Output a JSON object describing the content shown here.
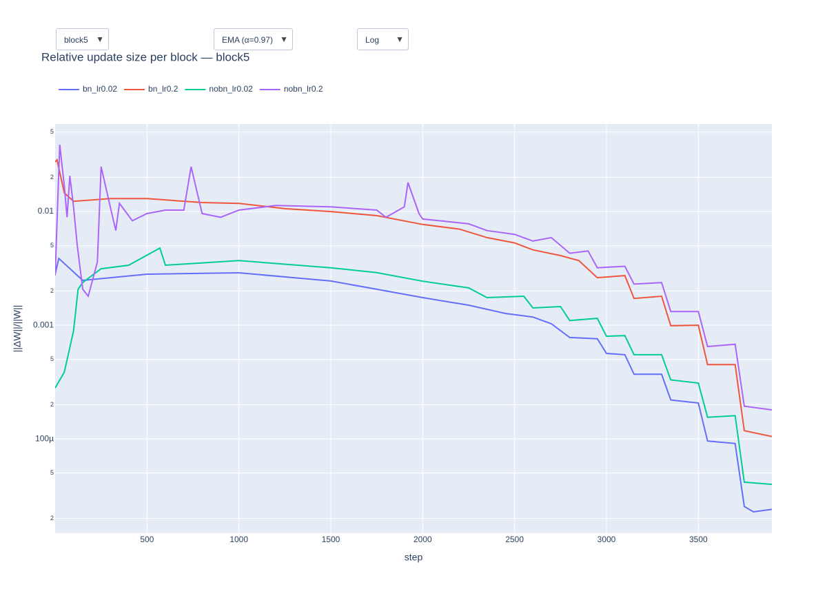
{
  "controls": {
    "block": "block5",
    "smoothing": "EMA (α=0.97)",
    "scale": "Log"
  },
  "chart_data": {
    "type": "line",
    "title": "Relative update size per block — block5",
    "x_label": "step",
    "y_label": "||ΔW||/||W||",
    "log_y": true,
    "grid": true,
    "legend": "top",
    "xlim": [
      0,
      3900
    ],
    "xticks": [
      500,
      1000,
      1500,
      2000,
      2500,
      3000,
      3500
    ],
    "ylim": [
      1.48e-05,
      0.0589
    ],
    "yticks": [
      {
        "value": 2e-05,
        "label": "2"
      },
      {
        "value": 5e-05,
        "label": "5"
      },
      {
        "value": 0.0001,
        "label": "100µ"
      },
      {
        "value": 0.0002,
        "label": "2"
      },
      {
        "value": 0.0005,
        "label": "5"
      },
      0.001,
      {
        "value": 0.002,
        "label": "2"
      },
      {
        "value": 0.005,
        "label": "5"
      },
      0.01,
      {
        "value": 0.02,
        "label": "2"
      },
      {
        "value": 0.05,
        "label": "5"
      }
    ],
    "series": [
      {
        "name": "bn_lr0.02",
        "color": "#636efa",
        "x": [
          0,
          20,
          150,
          500,
          1000,
          1500,
          1750,
          2000,
          2250,
          2450,
          2600,
          2700,
          2800,
          2950,
          3000,
          3100,
          3150,
          3300,
          3350,
          3500,
          3550,
          3700,
          3750,
          3800,
          3900
        ],
        "values": [
          0.0028,
          0.00387,
          0.00248,
          0.00281,
          0.00289,
          0.00245,
          0.00207,
          0.00175,
          0.0015,
          0.00127,
          0.00118,
          0.00103,
          0.00078,
          0.00076,
          0.000565,
          0.00055,
          0.00037,
          0.00037,
          0.00022,
          0.000207,
          9.58e-05,
          9.1e-05,
          2.54e-05,
          2.28e-05,
          2.4e-05
        ]
      },
      {
        "name": "bn_lr0.2",
        "color": "#ef553b",
        "x": [
          0,
          10,
          50,
          100,
          300,
          500,
          800,
          1000,
          1250,
          1500,
          1750,
          2000,
          2200,
          2350,
          2500,
          2600,
          2750,
          2850,
          2950,
          3100,
          3150,
          3300,
          3350,
          3500,
          3550,
          3700,
          3750,
          3900
        ],
        "values": [
          0.0273,
          0.0285,
          0.0146,
          0.0123,
          0.013,
          0.013,
          0.012,
          0.0118,
          0.0106,
          0.01,
          0.0092,
          0.0077,
          0.007,
          0.0059,
          0.0053,
          0.0046,
          0.0041,
          0.0037,
          0.00262,
          0.00273,
          0.00172,
          0.0018,
          0.00099,
          0.001,
          0.00045,
          0.00045,
          0.000118,
          0.000105
        ]
      },
      {
        "name": "nobn_lr0.02",
        "color": "#00cc96",
        "x": [
          0,
          50,
          100,
          125,
          150,
          200,
          250,
          400,
          570,
          600,
          1000,
          1500,
          1750,
          2000,
          2250,
          2350,
          2550,
          2600,
          2750,
          2800,
          2950,
          3000,
          3100,
          3150,
          3300,
          3350,
          3500,
          3550,
          3700,
          3750,
          3900
        ],
        "values": [
          0.00028,
          0.000386,
          0.00089,
          0.00207,
          0.00237,
          0.00273,
          0.00314,
          0.00337,
          0.00477,
          0.00337,
          0.0037,
          0.0032,
          0.0029,
          0.00244,
          0.00213,
          0.00175,
          0.0018,
          0.00142,
          0.00146,
          0.0011,
          0.00115,
          0.0008,
          0.00081,
          0.00055,
          0.00055,
          0.00033,
          0.00031,
          0.000155,
          0.00016,
          4.16e-05,
          3.98e-05
        ]
      },
      {
        "name": "nobn_lr0.2",
        "color": "#ab63fa",
        "x": [
          0,
          25,
          50,
          65,
          80,
          100,
          120,
          150,
          180,
          230,
          250,
          300,
          330,
          350,
          420,
          500,
          600,
          700,
          740,
          800,
          900,
          1000,
          1200,
          1500,
          1750,
          1800,
          1900,
          1920,
          1980,
          2000,
          2250,
          2350,
          2500,
          2600,
          2700,
          2800,
          2900,
          2950,
          3100,
          3150,
          3300,
          3350,
          3500,
          3550,
          3700,
          3750,
          3900
        ],
        "values": [
          0.00273,
          0.0387,
          0.0168,
          0.0089,
          0.0206,
          0.011,
          0.0051,
          0.00207,
          0.0018,
          0.0036,
          0.0248,
          0.011,
          0.0068,
          0.0118,
          0.0083,
          0.0096,
          0.0103,
          0.0103,
          0.0248,
          0.0096,
          0.0089,
          0.0103,
          0.0113,
          0.011,
          0.0103,
          0.0089,
          0.011,
          0.018,
          0.0096,
          0.0086,
          0.0078,
          0.0068,
          0.0063,
          0.0055,
          0.0059,
          0.0043,
          0.0045,
          0.0032,
          0.0033,
          0.0023,
          0.00237,
          0.00132,
          0.00132,
          0.00065,
          0.00068,
          0.000194,
          0.00018
        ]
      }
    ]
  }
}
